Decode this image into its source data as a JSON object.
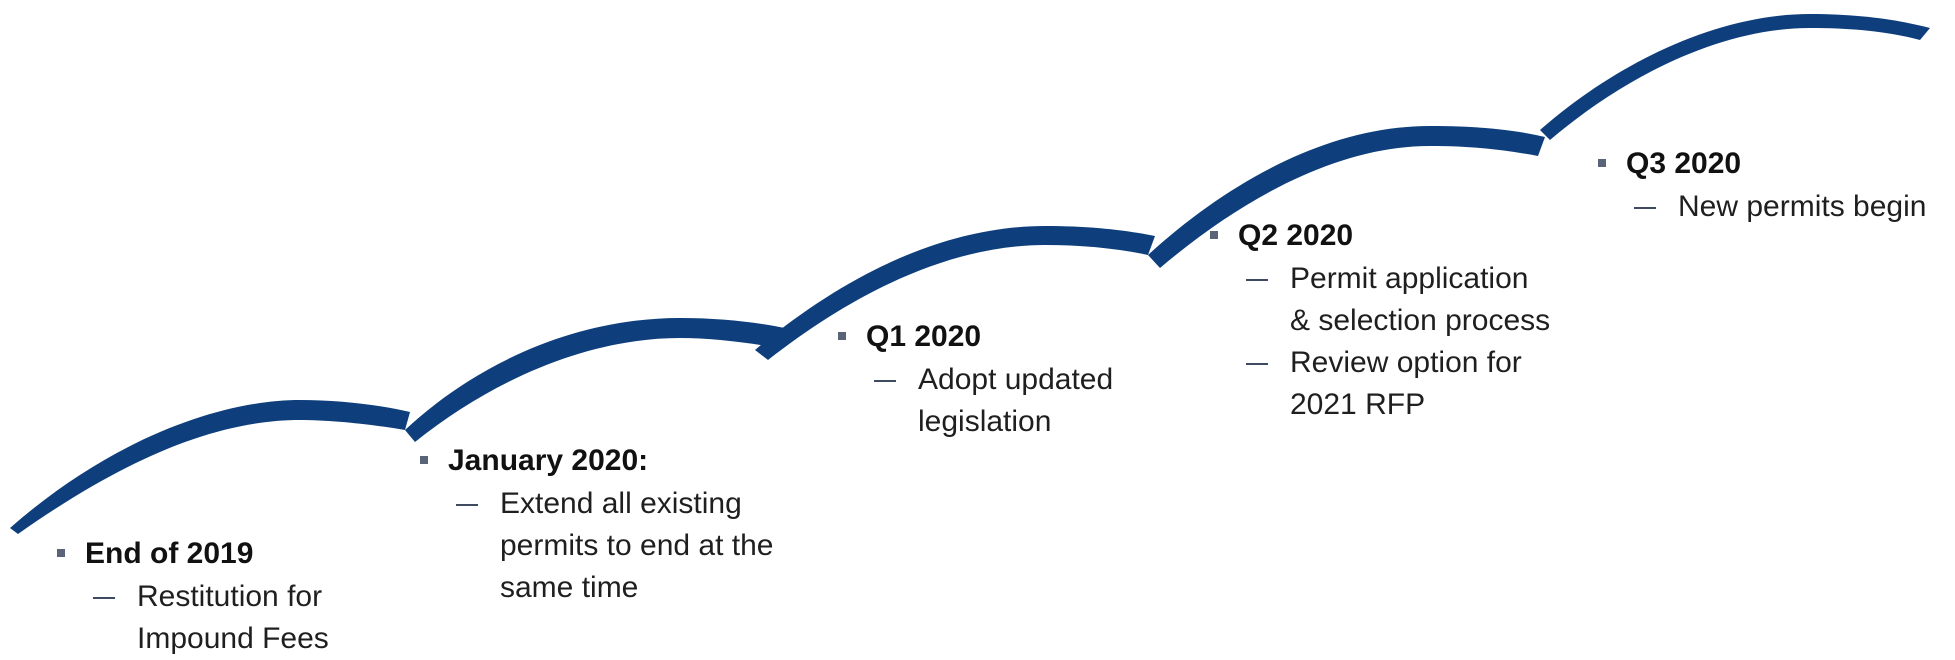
{
  "colors": {
    "arc": "#0e3f7c",
    "bullet": "#5a6478",
    "dash": "#3e4a60"
  },
  "milestones": [
    {
      "title": "End of 2019",
      "items": [
        [
          "Restitution for",
          "Impound Fees"
        ]
      ]
    },
    {
      "title": "January 2020:",
      "items": [
        [
          "Extend all existing",
          "permits to end at the",
          "same time"
        ]
      ]
    },
    {
      "title": "Q1 2020",
      "items": [
        [
          "Adopt updated",
          "legislation"
        ]
      ]
    },
    {
      "title": "Q2 2020",
      "items": [
        [
          "Permit application",
          "& selection process"
        ],
        [
          "Review option for",
          "2021 RFP"
        ]
      ]
    },
    {
      "title": "Q3 2020",
      "items": [
        [
          "New permits begin"
        ]
      ]
    }
  ]
}
